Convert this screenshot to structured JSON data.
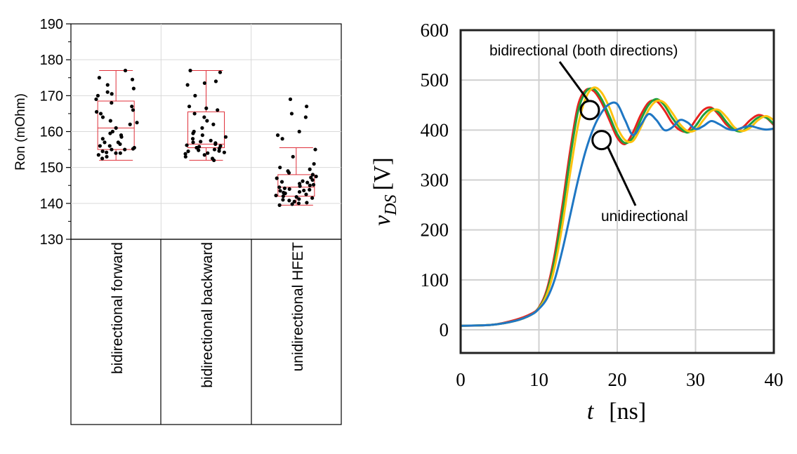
{
  "chart_data": [
    {
      "type": "box",
      "ylabel": "Ron (mOhm)",
      "ylim": [
        130,
        190
      ],
      "yticks": [
        130,
        140,
        150,
        160,
        170,
        180,
        190
      ],
      "grid": true,
      "categories": [
        "bidirectional forward",
        "bidirectional backward",
        "unidirectional HFET"
      ],
      "boxes": [
        {
          "whisker_low": 152,
          "q1": 155,
          "median": 161,
          "q3": 168.5,
          "whisker_high": 177
        },
        {
          "whisker_low": 152,
          "q1": 155.5,
          "median": 156.5,
          "q3": 165.5,
          "whisker_high": 177
        },
        {
          "whisker_low": 139.5,
          "q1": 142,
          "median": 144.5,
          "q3": 148,
          "whisker_high": 155.5
        }
      ],
      "points": [
        [
          174.5,
          172,
          170,
          168,
          166,
          165,
          163,
          161,
          159,
          157,
          156,
          155.5,
          155,
          154.5,
          154,
          153,
          175,
          177,
          173,
          171,
          169,
          167,
          164,
          162,
          160,
          158,
          157,
          156,
          155,
          154,
          153.5,
          152.5,
          170.5,
          165.5,
          162.5,
          159.5,
          158.5,
          156.5,
          155.2,
          154.2
        ],
        [
          177,
          176.5,
          174,
          173,
          170,
          167,
          166,
          165,
          163,
          162,
          160,
          159,
          158,
          157.5,
          157,
          156.5,
          156,
          155.5,
          155,
          154.8,
          154.5,
          154,
          153.5,
          153,
          152.5,
          152,
          166.5,
          164,
          161,
          158.5,
          157.2,
          156.2,
          155.3,
          154.6,
          153.8,
          173.5,
          159.5,
          156.8,
          155.8,
          154.2
        ],
        [
          169,
          167,
          165,
          164,
          160,
          159,
          158,
          155,
          153,
          150,
          149,
          148,
          147.5,
          147,
          146.5,
          146,
          145.5,
          145,
          144.5,
          144,
          143.5,
          143,
          142.5,
          142,
          141.5,
          141,
          140.5,
          140,
          139.5,
          148.5,
          146.2,
          145.2,
          144.2,
          143.2,
          142.2,
          141.2,
          140.2,
          147.2,
          145.8,
          144.8,
          143.8,
          142.8,
          141.8,
          140.8,
          139.8,
          151,
          149.5,
          143.6
        ]
      ]
    },
    {
      "type": "line",
      "xlabel": "t",
      "xlabel_unit": "[ns]",
      "ylabel": "v",
      "ylabel_sub": "DS",
      "ylabel_unit": "[V]",
      "xlim": [
        0,
        40
      ],
      "ylim": [
        0,
        600
      ],
      "xticks": [
        0,
        10,
        20,
        30,
        40
      ],
      "yticks": [
        0,
        100,
        200,
        300,
        400,
        500,
        600
      ],
      "grid": true,
      "series": [
        {
          "color": "#e8231f",
          "x": [
            0,
            4,
            7,
            9,
            10,
            11,
            12,
            13,
            14,
            15,
            16,
            17,
            18,
            19,
            20,
            21,
            22,
            23,
            24,
            25,
            26,
            27,
            28,
            29,
            30,
            31,
            32,
            33,
            34,
            35,
            36,
            37,
            38,
            39,
            40
          ],
          "values": [
            8,
            10,
            20,
            32,
            45,
            80,
            150,
            250,
            360,
            450,
            480,
            478,
            455,
            420,
            385,
            372,
            395,
            430,
            455,
            458,
            440,
            415,
            400,
            398,
            420,
            440,
            445,
            430,
            410,
            400,
            405,
            420,
            430,
            425,
            410
          ]
        },
        {
          "color": "#1fa03c",
          "x": [
            0,
            4,
            7,
            9,
            10,
            11,
            12,
            13,
            14,
            15,
            16,
            17,
            18,
            19,
            20,
            21,
            22,
            23,
            24,
            25,
            26,
            27,
            28,
            29,
            30,
            31,
            32,
            33,
            34,
            35,
            36,
            37,
            38,
            39,
            40
          ],
          "values": [
            8,
            10,
            18,
            30,
            44,
            75,
            140,
            235,
            345,
            438,
            477,
            482,
            462,
            428,
            392,
            374,
            385,
            420,
            450,
            462,
            450,
            425,
            405,
            395,
            408,
            430,
            442,
            435,
            415,
            400,
            398,
            412,
            425,
            425,
            412
          ]
        },
        {
          "color": "#ffc20e",
          "x": [
            0,
            4,
            7,
            9,
            10,
            11,
            12,
            13,
            14,
            15,
            16,
            17,
            18,
            19,
            20,
            21,
            22,
            23,
            24,
            25,
            26,
            27,
            28,
            29,
            30,
            31,
            32,
            33,
            34,
            35,
            36,
            37,
            38,
            39,
            40
          ],
          "values": [
            8,
            10,
            18,
            30,
            43,
            70,
            125,
            210,
            315,
            410,
            465,
            485,
            475,
            445,
            405,
            380,
            378,
            405,
            440,
            458,
            455,
            435,
            412,
            398,
            400,
            420,
            438,
            440,
            425,
            405,
            398,
            405,
            420,
            428,
            420
          ]
        },
        {
          "color": "#1f77c4",
          "x": [
            0,
            4,
            7,
            9,
            10,
            11,
            12,
            13,
            14,
            15,
            16,
            17,
            18,
            19,
            20,
            21,
            22,
            23,
            24,
            25,
            26,
            27,
            28,
            29,
            30,
            31,
            32,
            33,
            34,
            35,
            36,
            37,
            38,
            39,
            40
          ],
          "values": [
            8,
            10,
            18,
            30,
            42,
            62,
            100,
            160,
            230,
            300,
            360,
            405,
            435,
            452,
            452,
            420,
            390,
            410,
            432,
            420,
            400,
            405,
            420,
            415,
            402,
            408,
            418,
            412,
            403,
            400,
            405,
            408,
            404,
            401,
            403
          ]
        }
      ],
      "annotations": [
        {
          "text": "bidirectional (both directions)",
          "circle_at": {
            "x": 16.5,
            "y": 440
          }
        },
        {
          "text": "unidirectional",
          "circle_at": {
            "x": 18,
            "y": 380
          }
        }
      ]
    }
  ]
}
